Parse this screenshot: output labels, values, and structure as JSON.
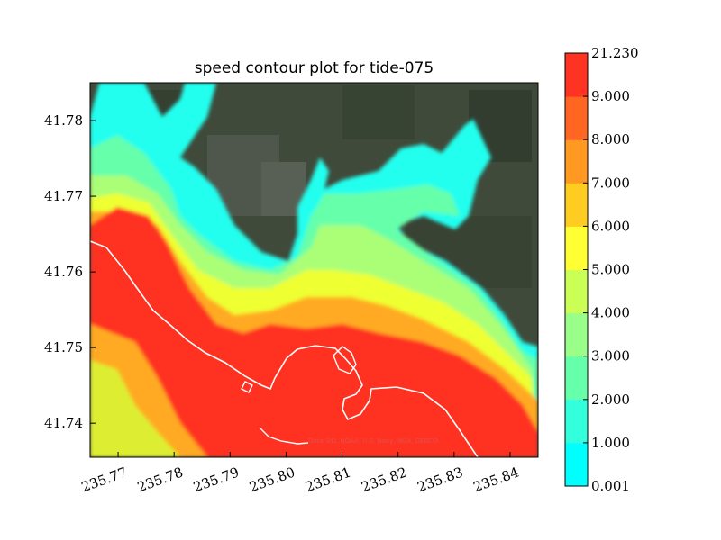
{
  "chart_data": {
    "type": "heatmap",
    "title": "speed contour plot for tide-075",
    "xlabel": "",
    "ylabel": "",
    "xlim": [
      235.765,
      235.845
    ],
    "ylim": [
      41.7355,
      41.785
    ],
    "x_ticks": [
      "235.77",
      "235.78",
      "235.79",
      "235.80",
      "235.81",
      "235.82",
      "235.83",
      "235.84"
    ],
    "x_tick_values": [
      235.77,
      235.78,
      235.79,
      235.8,
      235.81,
      235.82,
      235.83,
      235.84
    ],
    "y_ticks": [
      "41.74",
      "41.75",
      "41.76",
      "41.77",
      "41.78"
    ],
    "y_tick_values": [
      41.74,
      41.75,
      41.76,
      41.77,
      41.78
    ],
    "colorbar": {
      "levels": [
        "0.001",
        "1.000",
        "2.000",
        "3.000",
        "4.000",
        "5.000",
        "6.000",
        "7.000",
        "8.000",
        "9.000",
        "21.230"
      ],
      "colors": [
        "#00ffff",
        "#33ffdd",
        "#66ffaa",
        "#99ff88",
        "#ccff55",
        "#ffff33",
        "#ffcc22",
        "#ff9922",
        "#ff6622",
        "#ff3322"
      ]
    },
    "basemap_attribution": "Data SIO, NOAA, U.S. Navy, NGA, GEBCO",
    "grid": false
  },
  "colors": {
    "land": "#3f4a3a",
    "coastline": "#ffffff"
  }
}
